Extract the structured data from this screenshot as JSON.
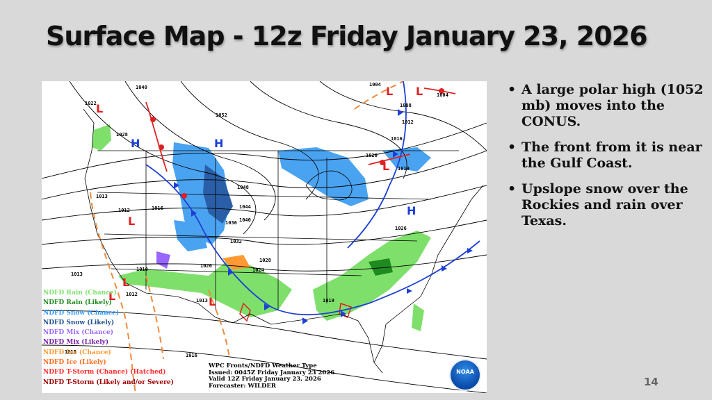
{
  "slide": {
    "title": "Surface Map - 12z Friday January 23, 2026",
    "page_number": "14",
    "bullets": [
      "A large polar high (1052 mb) moves into the CONUS.",
      "The front from it is near the Gulf Coast.",
      "Upslope snow over the Rockies and rain over Texas."
    ]
  },
  "map": {
    "pressure_labels": [
      "1040",
      "1022",
      "1052",
      "1028",
      "1013",
      "1012",
      "1016",
      "1048",
      "1044",
      "1036",
      "1040",
      "1032",
      "1028",
      "1024",
      "1020",
      "1010",
      "1012",
      "1013",
      "1013",
      "1015",
      "1016",
      "1019",
      "1026",
      "1020",
      "1019",
      "1016",
      "1012",
      "1008",
      "1004",
      "1004"
    ],
    "pressure_centers": [
      "H",
      "H",
      "H",
      "L",
      "L",
      "L",
      "L",
      "L",
      "L",
      "L",
      "L"
    ],
    "legend": [
      {
        "label": "NDFD Rain (Chance)",
        "color": "#7ee06b"
      },
      {
        "label": "NDFD Rain (Likely)",
        "color": "#1f8a1f"
      },
      {
        "label": "NDFD Snow (Chance)",
        "color": "#3399ff"
      },
      {
        "label": "NDFD Snow (Likely)",
        "color": "#1f4f8f"
      },
      {
        "label": "NDFD Mix (Chance)",
        "color": "#9966ff"
      },
      {
        "label": "NDFD Mix (Likely)",
        "color": "#7a1fa8"
      },
      {
        "label": "NDFD Ice (Chance)",
        "color": "#ff9933"
      },
      {
        "label": "NDFD Ice (Likely)",
        "color": "#ff6a1a"
      },
      {
        "label": "NDFD T-Storm (Chance) (Hatched)",
        "color": "#ff2a2a"
      },
      {
        "label": "NDFD T-Storm (Likely and/or Severe)",
        "color": "#a00000"
      }
    ],
    "info": {
      "line1": "WPC Fronts/NDFD Weather Type",
      "line2": "Issued: 0045Z Friday January 23 2026",
      "line3": "Valid 12Z Friday January 23, 2026",
      "line4": "Forecaster: WILDER"
    },
    "logo_text": "NOAA"
  }
}
